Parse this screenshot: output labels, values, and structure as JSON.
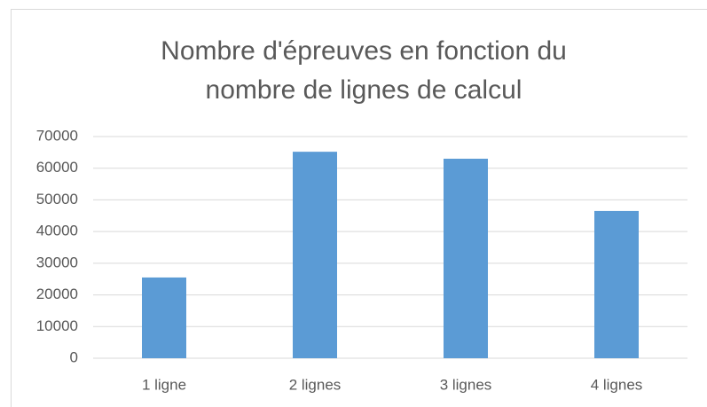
{
  "chart_data": {
    "type": "bar",
    "title": "Nombre d'épreuves en fonction du nombre de lignes de calcul",
    "categories": [
      "1 ligne",
      "2 lignes",
      "3 lignes",
      "4 lignes"
    ],
    "values": [
      25500,
      65200,
      63000,
      46500
    ],
    "color": "#5b9bd5",
    "ylim": [
      0,
      70000
    ],
    "yticks": [
      0,
      10000,
      20000,
      30000,
      40000,
      50000,
      60000,
      70000
    ],
    "grid": true
  }
}
